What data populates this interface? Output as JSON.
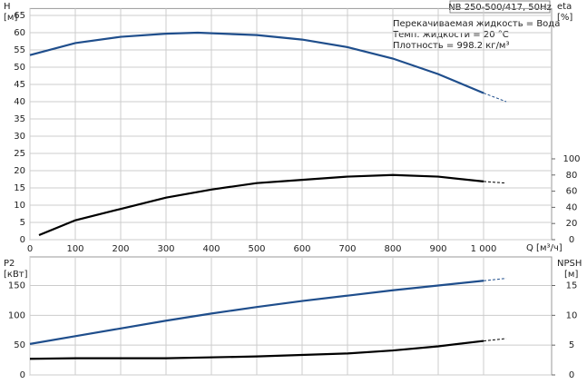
{
  "chart_data": [
    {
      "type": "line",
      "title": "NB 250-500/417, 50Hz",
      "annotations": [
        "Перекачиваемая жидкость = Вода",
        "Темп. жидкости = 20 °C",
        "Плотность = 998.2 кг/м³"
      ],
      "y_label": "H",
      "y_unit": "[м]",
      "y2_label": "eta",
      "y2_unit": "[%]",
      "x_label": "Q [м³/ч]",
      "xlim": [
        0,
        1150
      ],
      "ylim": [
        0,
        67
      ],
      "y2lim": [
        0,
        286
      ],
      "grid": true,
      "dashed_after": 1000,
      "xticks": [
        0,
        100,
        200,
        300,
        400,
        500,
        600,
        700,
        800,
        900,
        {
          "value": 1000,
          "label": "1 000"
        }
      ],
      "yticks": [
        0,
        5,
        10,
        15,
        20,
        25,
        30,
        35,
        40,
        45,
        50,
        55,
        60,
        65
      ],
      "y2ticks": [
        0,
        20,
        40,
        60,
        80,
        100
      ],
      "series": [
        {
          "color": "#1f4e8c",
          "axis": "y",
          "x": [
            0,
            100,
            200,
            300,
            370,
            500,
            600,
            700,
            800,
            900,
            1000,
            1050
          ],
          "values": [
            53.5,
            57,
            58.8,
            59.7,
            60,
            59.3,
            58,
            55.8,
            52.5,
            48,
            42.5,
            40
          ]
        },
        {
          "color": "#000000",
          "axis": "y2",
          "x": [
            20,
            100,
            200,
            300,
            400,
            500,
            600,
            700,
            800,
            900,
            1000,
            1050
          ],
          "values": [
            5.6,
            24,
            38,
            52,
            62,
            70,
            74,
            78,
            80,
            78,
            72,
            70
          ]
        }
      ]
    },
    {
      "type": "line",
      "y_label": "P2",
      "y_unit": "[кВт]",
      "y2_label": "NPSH",
      "y2_unit": "[м]",
      "xlim": [
        0,
        1150
      ],
      "ylim": [
        0,
        198
      ],
      "y2lim": [
        0,
        19.8
      ],
      "grid": true,
      "dashed_after": 1000,
      "yticks": [
        0,
        50,
        100,
        150
      ],
      "y2ticks": [
        0,
        5,
        10,
        15
      ],
      "series": [
        {
          "color": "#1f4e8c",
          "axis": "y",
          "x": [
            0,
            100,
            200,
            300,
            400,
            500,
            600,
            700,
            800,
            900,
            1000,
            1050
          ],
          "values": [
            52,
            65,
            78,
            91,
            103,
            114,
            124,
            133,
            142,
            150,
            158,
            162
          ]
        },
        {
          "color": "#000000",
          "axis": "y2",
          "x": [
            0,
            100,
            300,
            500,
            700,
            800,
            900,
            1000,
            1050
          ],
          "values": [
            2.7,
            2.8,
            2.8,
            3.1,
            3.6,
            4.1,
            4.8,
            5.7,
            6.1
          ]
        }
      ]
    }
  ]
}
